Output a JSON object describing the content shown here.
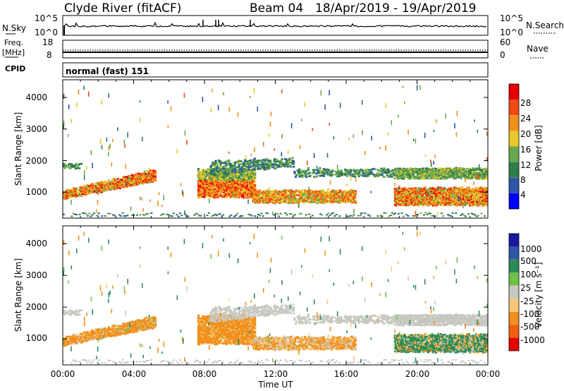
{
  "header": {
    "station": "Clyde River (fitACF)",
    "beam": "Beam 04",
    "dates": "18/Apr/2019 - 19/Apr/2019"
  },
  "nsky_panel": {
    "left_label": "N.Sky",
    "left_ticks": [
      "10^5",
      "10^0"
    ],
    "right_ticks": [
      "10^5",
      "10^0"
    ],
    "right_label": "N.Search"
  },
  "freq_panel": {
    "left_label_1": "Freq.",
    "left_label_2": "[MHz]",
    "left_ticks": [
      "18",
      "8"
    ],
    "right_ticks": [
      "60",
      "0"
    ],
    "right_label": "Nave"
  },
  "cpid_panel": {
    "label": "CPID",
    "text": "normal (fast) 151"
  },
  "x_axis": {
    "label": "Time UT",
    "ticks": [
      "00:00",
      "04:00",
      "08:00",
      "12:00",
      "16:00",
      "20:00",
      "00:00"
    ]
  },
  "power_panel": {
    "ylabel": "Slant Range [km]",
    "yticks": [
      "4000",
      "3000",
      "2000",
      "1000"
    ],
    "colorbar_label": "Power [dB]",
    "colorbar_ticks": [
      "28",
      "24",
      "20",
      "16",
      "12",
      "8",
      "4"
    ],
    "colorbar_colors": [
      "#0000ff",
      "#2f55a8",
      "#2f7e4a",
      "#6aa84f",
      "#e6c82a",
      "#f0901c",
      "#f04a14",
      "#e60000"
    ]
  },
  "velocity_panel": {
    "ylabel": "Slant Range [km]",
    "yticks": [
      "4000",
      "3000",
      "2000",
      "1000"
    ],
    "colorbar_label": "Velocity [m s⁻¹]",
    "colorbar_ticks": [
      "1000",
      "500",
      "100",
      "25",
      "-25",
      "-100",
      "-500",
      "-1000"
    ],
    "colorbar_colors": [
      "#e60000",
      "#f25f10",
      "#f0901c",
      "#f5c87a",
      "#c8c8c0",
      "#6ec24a",
      "#2e8b57",
      "#2f55a8",
      "#1a1aa0"
    ]
  },
  "chart_data": {
    "type": "heatmap",
    "x_range_hours": [
      0,
      24
    ],
    "y_range_km": [
      180,
      4560
    ],
    "scatter_bands": [
      {
        "name_hint": "rising echo early",
        "t": [
          0,
          5.2
        ],
        "range_km": [
          850,
          1700
        ],
        "power_dB": [
          10,
          30
        ],
        "velocity": [
          -500,
          -100
        ]
      },
      {
        "name_hint": "upper band early",
        "t": [
          0,
          1
        ],
        "range_km": [
          1750,
          1950
        ],
        "power_dB": [
          8,
          14
        ],
        "velocity": [
          -25,
          25
        ]
      },
      {
        "name_hint": "main band day",
        "t": [
          7.6,
          10.7
        ],
        "range_km": [
          900,
          1800
        ],
        "power_dB": [
          14,
          30
        ],
        "velocity": [
          -500,
          -100
        ]
      },
      {
        "name_hint": "near band",
        "t": [
          10.7,
          16.5
        ],
        "range_km": [
          700,
          1100
        ],
        "power_dB": [
          12,
          28
        ],
        "velocity": [
          -500,
          -25
        ]
      },
      {
        "name_hint": "upper band day",
        "t": [
          8,
          24
        ],
        "range_km": [
          1500,
          2100
        ],
        "power_dB": [
          6,
          18
        ],
        "velocity": [
          -25,
          25
        ]
      },
      {
        "name_hint": "night band",
        "t": [
          18.7,
          24
        ],
        "range_km": [
          600,
          1200
        ],
        "power_dB": [
          12,
          30
        ],
        "velocity": [
          -100,
          500
        ]
      }
    ]
  }
}
